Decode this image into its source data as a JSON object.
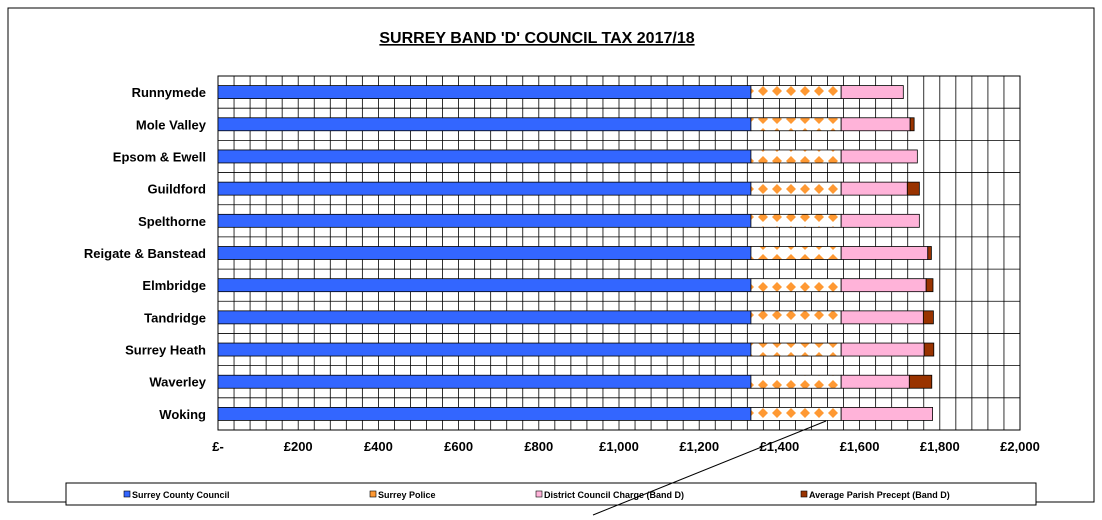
{
  "colors": {
    "county": "#3366ff",
    "police": "#ff9933",
    "district": "#ffb3d9",
    "parish": "#993300",
    "axis": "#000000",
    "grid": "#000000"
  },
  "chart_data": {
    "type": "bar",
    "orientation": "horizontal",
    "stacked": true,
    "title": "SURREY BAND 'D' COUNCIL TAX 2017/18",
    "xlabel": "",
    "ylabel": "",
    "xlim": [
      0,
      2000
    ],
    "x_tick_values": [
      0,
      200,
      400,
      600,
      800,
      1000,
      1200,
      1400,
      1600,
      1800,
      2000
    ],
    "x_tick_labels": [
      "£-",
      "£200",
      "£400",
      "£600",
      "£800",
      "£1,000",
      "£1,200",
      "£1,400",
      "£1,600",
      "£1,800",
      "£2,000"
    ],
    "grid": true,
    "legend_position": "bottom",
    "categories": [
      "Runnymede",
      "Mole Valley",
      "Epsom & Ewell",
      "Guildford",
      "Spelthorne",
      "Reigate & Banstead",
      "Elmbridge",
      "Tandridge",
      "Surrey Heath",
      "Waverley",
      "Woking"
    ],
    "series": [
      {
        "name": "Surrey County Council",
        "color": "#3366ff",
        "pattern": "solid",
        "values": [
          1329,
          1329,
          1329,
          1329,
          1329,
          1329,
          1329,
          1329,
          1329,
          1329,
          1329
        ]
      },
      {
        "name": "Surrey Police",
        "color": "#ff9933",
        "pattern": "diamonds",
        "values": [
          225,
          225,
          225,
          225,
          225,
          225,
          225,
          225,
          225,
          225,
          225
        ]
      },
      {
        "name": "District Council Charge (Band D)",
        "color": "#ffb3d9",
        "pattern": "solid",
        "values": [
          155,
          172,
          190,
          165,
          195,
          216,
          212,
          205,
          207,
          170,
          228
        ]
      },
      {
        "name": "Average Parish Precept  (Band D)",
        "color": "#993300",
        "pattern": "solid",
        "values": [
          0,
          10,
          0,
          30,
          0,
          9,
          17,
          25,
          24,
          56,
          0
        ]
      }
    ]
  }
}
